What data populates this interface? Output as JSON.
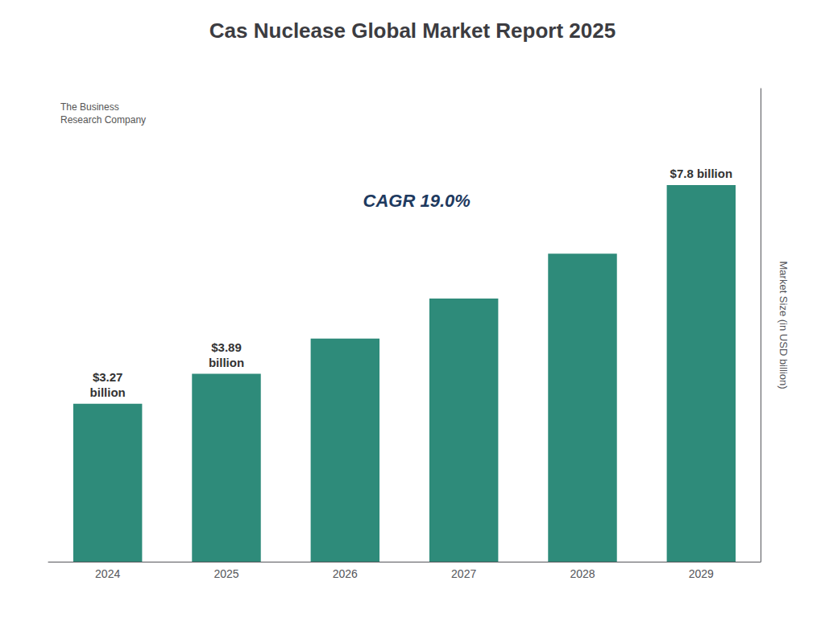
{
  "chart_data": {
    "type": "bar",
    "title": "Cas Nuclease Global Market Report 2025",
    "categories": [
      "2024",
      "2025",
      "2026",
      "2027",
      "2028",
      "2029"
    ],
    "values": [
      3.27,
      3.89,
      4.62,
      5.45,
      6.38,
      7.8
    ],
    "value_labels": [
      "$3.27\nbillion",
      "$3.89\nbillion",
      null,
      null,
      null,
      "$7.8 billion"
    ],
    "color": "#2e8b7a",
    "ylabel": "Market Size (in USD billion)",
    "ylim": [
      0,
      9.8
    ],
    "grid": false,
    "tick_labels": "x",
    "annotations": [
      "CAGR 19.0%",
      "The Business\nResearch Company"
    ]
  }
}
